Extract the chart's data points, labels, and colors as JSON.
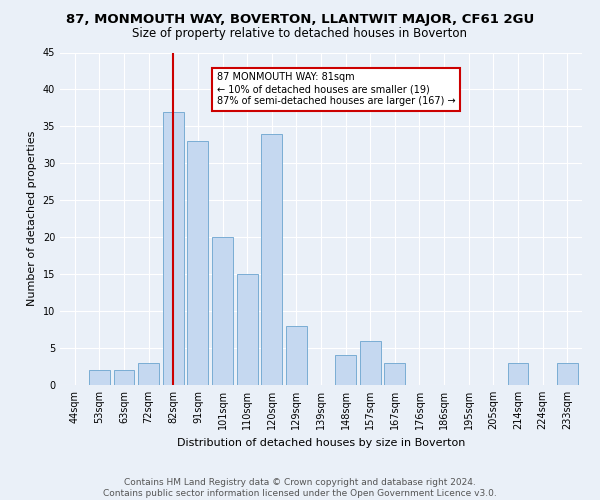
{
  "title": "87, MONMOUTH WAY, BOVERTON, LLANTWIT MAJOR, CF61 2GU",
  "subtitle": "Size of property relative to detached houses in Boverton",
  "xlabel": "Distribution of detached houses by size in Boverton",
  "ylabel": "Number of detached properties",
  "footnote": "Contains HM Land Registry data © Crown copyright and database right 2024.\nContains public sector information licensed under the Open Government Licence v3.0.",
  "bar_labels": [
    "44sqm",
    "53sqm",
    "63sqm",
    "72sqm",
    "82sqm",
    "91sqm",
    "101sqm",
    "110sqm",
    "120sqm",
    "129sqm",
    "139sqm",
    "148sqm",
    "157sqm",
    "167sqm",
    "176sqm",
    "186sqm",
    "195sqm",
    "205sqm",
    "214sqm",
    "224sqm",
    "233sqm"
  ],
  "bar_values": [
    0,
    2,
    2,
    3,
    37,
    33,
    20,
    15,
    34,
    8,
    0,
    4,
    6,
    3,
    0,
    0,
    0,
    0,
    3,
    0,
    3
  ],
  "bar_color": "#c5d8f0",
  "bar_edge_color": "#7aadd4",
  "vline_x_idx": 4,
  "vline_color": "#cc0000",
  "annotation_text": "87 MONMOUTH WAY: 81sqm\n← 10% of detached houses are smaller (19)\n87% of semi-detached houses are larger (167) →",
  "annotation_box_color": "#ffffff",
  "annotation_box_edge": "#cc0000",
  "ylim": [
    0,
    45
  ],
  "yticks": [
    0,
    5,
    10,
    15,
    20,
    25,
    30,
    35,
    40,
    45
  ],
  "bg_color": "#eaf0f8",
  "plot_bg_color": "#eaf0f8",
  "title_fontsize": 9.5,
  "subtitle_fontsize": 8.5,
  "axis_label_fontsize": 8,
  "tick_fontsize": 7,
  "footnote_fontsize": 6.5
}
